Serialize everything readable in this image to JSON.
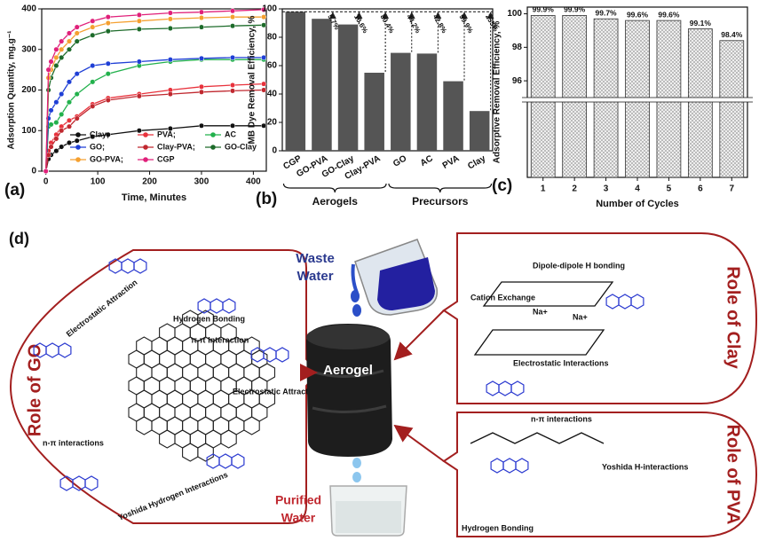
{
  "chart_data": [
    {
      "type": "line",
      "label": "(a)",
      "xlabel": "Time, Minutes",
      "ylabel": "Adsorption Quantity, mg.g⁻¹",
      "x": [
        0,
        5,
        10,
        20,
        30,
        45,
        60,
        90,
        120,
        180,
        240,
        300,
        360,
        420
      ],
      "xlim": [
        -8,
        425
      ],
      "xticks": [
        0,
        100,
        200,
        300,
        400
      ],
      "ylim": [
        0,
        400
      ],
      "yticks": [
        0,
        100,
        200,
        300,
        400
      ],
      "series": [
        {
          "name": "Clay;",
          "color": "#111111",
          "values": [
            0,
            30,
            40,
            50,
            60,
            70,
            75,
            85,
            90,
            100,
            105,
            112,
            112,
            112
          ]
        },
        {
          "name": "PVA;",
          "color": "#e8323c",
          "values": [
            0,
            50,
            70,
            90,
            110,
            125,
            135,
            165,
            180,
            190,
            200,
            208,
            212,
            215
          ]
        },
        {
          "name": "AC",
          "color": "#22b14c",
          "values": [
            0,
            110,
            115,
            120,
            140,
            170,
            190,
            220,
            240,
            260,
            270,
            275,
            275,
            275
          ]
        },
        {
          "name": "GO;",
          "color": "#1f3fd6",
          "values": [
            0,
            130,
            150,
            170,
            190,
            220,
            240,
            260,
            265,
            270,
            275,
            278,
            280,
            280
          ]
        },
        {
          "name": "Clay-PVA;",
          "color": "#c0282f",
          "values": [
            0,
            40,
            60,
            80,
            100,
            110,
            130,
            160,
            175,
            185,
            190,
            195,
            198,
            200
          ]
        },
        {
          "name": "GO-Clay",
          "color": "#1d6b2a",
          "values": [
            0,
            200,
            230,
            260,
            280,
            300,
            320,
            335,
            345,
            350,
            352,
            355,
            358,
            360
          ]
        },
        {
          "name": "GO-PVA;",
          "color": "#f5a030",
          "values": [
            0,
            230,
            250,
            280,
            300,
            320,
            340,
            355,
            365,
            370,
            375,
            378,
            380,
            380
          ]
        },
        {
          "name": "CGP",
          "color": "#e0207a",
          "values": [
            0,
            250,
            270,
            300,
            320,
            340,
            355,
            370,
            380,
            385,
            390,
            392,
            395,
            398
          ]
        }
      ]
    },
    {
      "type": "bar",
      "label": "(b)",
      "ylabel": "MB Dye Removal Efficiency, %",
      "color": "#555555",
      "categories": [
        "CGP",
        "GO-PVA",
        "GO-Clay",
        "Clay-PVA",
        "GO",
        "AC",
        "PVA",
        "Clay"
      ],
      "values": [
        98,
        93,
        89,
        55,
        69,
        68.5,
        49,
        28
      ],
      "ylim": [
        0,
        100
      ],
      "yticks": [
        0,
        20,
        40,
        60,
        80,
        100
      ],
      "annotations": [
        {
          "text": "5.7%",
          "category": "GO-PVA"
        },
        {
          "text": "10.6%",
          "category": "GO-Clay"
        },
        {
          "text": "80.4%",
          "category": "Clay-PVA"
        },
        {
          "text": "44.2%",
          "category": "GO"
        },
        {
          "text": "42.8%",
          "category": "AC"
        },
        {
          "text": "99.9%",
          "category": "PVA"
        },
        {
          "text": "255%",
          "category": "Clay"
        }
      ],
      "groups": [
        {
          "label": "Aerogels",
          "from": "CGP",
          "to": "Clay-PVA"
        },
        {
          "label": "Precursors",
          "from": "GO",
          "to": "Clay"
        }
      ]
    },
    {
      "type": "bar",
      "label": "(c)",
      "xlabel": "Number of Cycles",
      "ylabel": "Adsorptive Removal Efficiency, %",
      "color": "#dddddd",
      "categories": [
        "1",
        "2",
        "3",
        "4",
        "5",
        "6",
        "7"
      ],
      "values": [
        99.9,
        99.9,
        99.7,
        99.6,
        99.6,
        99.1,
        98.4
      ],
      "value_labels": [
        "99.9%",
        "99.9%",
        "99.7%",
        "99.6%",
        "99.6%",
        "99.1%",
        "98.4%"
      ],
      "ylim": [
        95,
        100.4
      ],
      "yticks": [
        96,
        98,
        100
      ],
      "broken_axis": true
    }
  ],
  "diagram": {
    "label": "(d)",
    "go": {
      "title": "Role of GO",
      "notes": [
        "Electrostatic Attraction",
        "Hydrogen Bonding",
        "π-π Interaction",
        "Electrostatic Attraction",
        "n-π interactions",
        "Yoshida Hydrogen Interactions"
      ]
    },
    "clay": {
      "title": "Role of Clay",
      "notes": [
        "Dipole-dipole H bonding",
        "Cation Exchange",
        "Na+",
        "Na+",
        "Electrostatic Interactions"
      ]
    },
    "pva": {
      "title": "Role of PVA",
      "notes": [
        "n-π interactions",
        "Yoshida H-interactions",
        "Hydrogen Bonding"
      ]
    },
    "waste_water": [
      "Waste",
      "Water"
    ],
    "aerogel": "Aerogel",
    "purified_water": [
      "Purified",
      "Water"
    ]
  }
}
